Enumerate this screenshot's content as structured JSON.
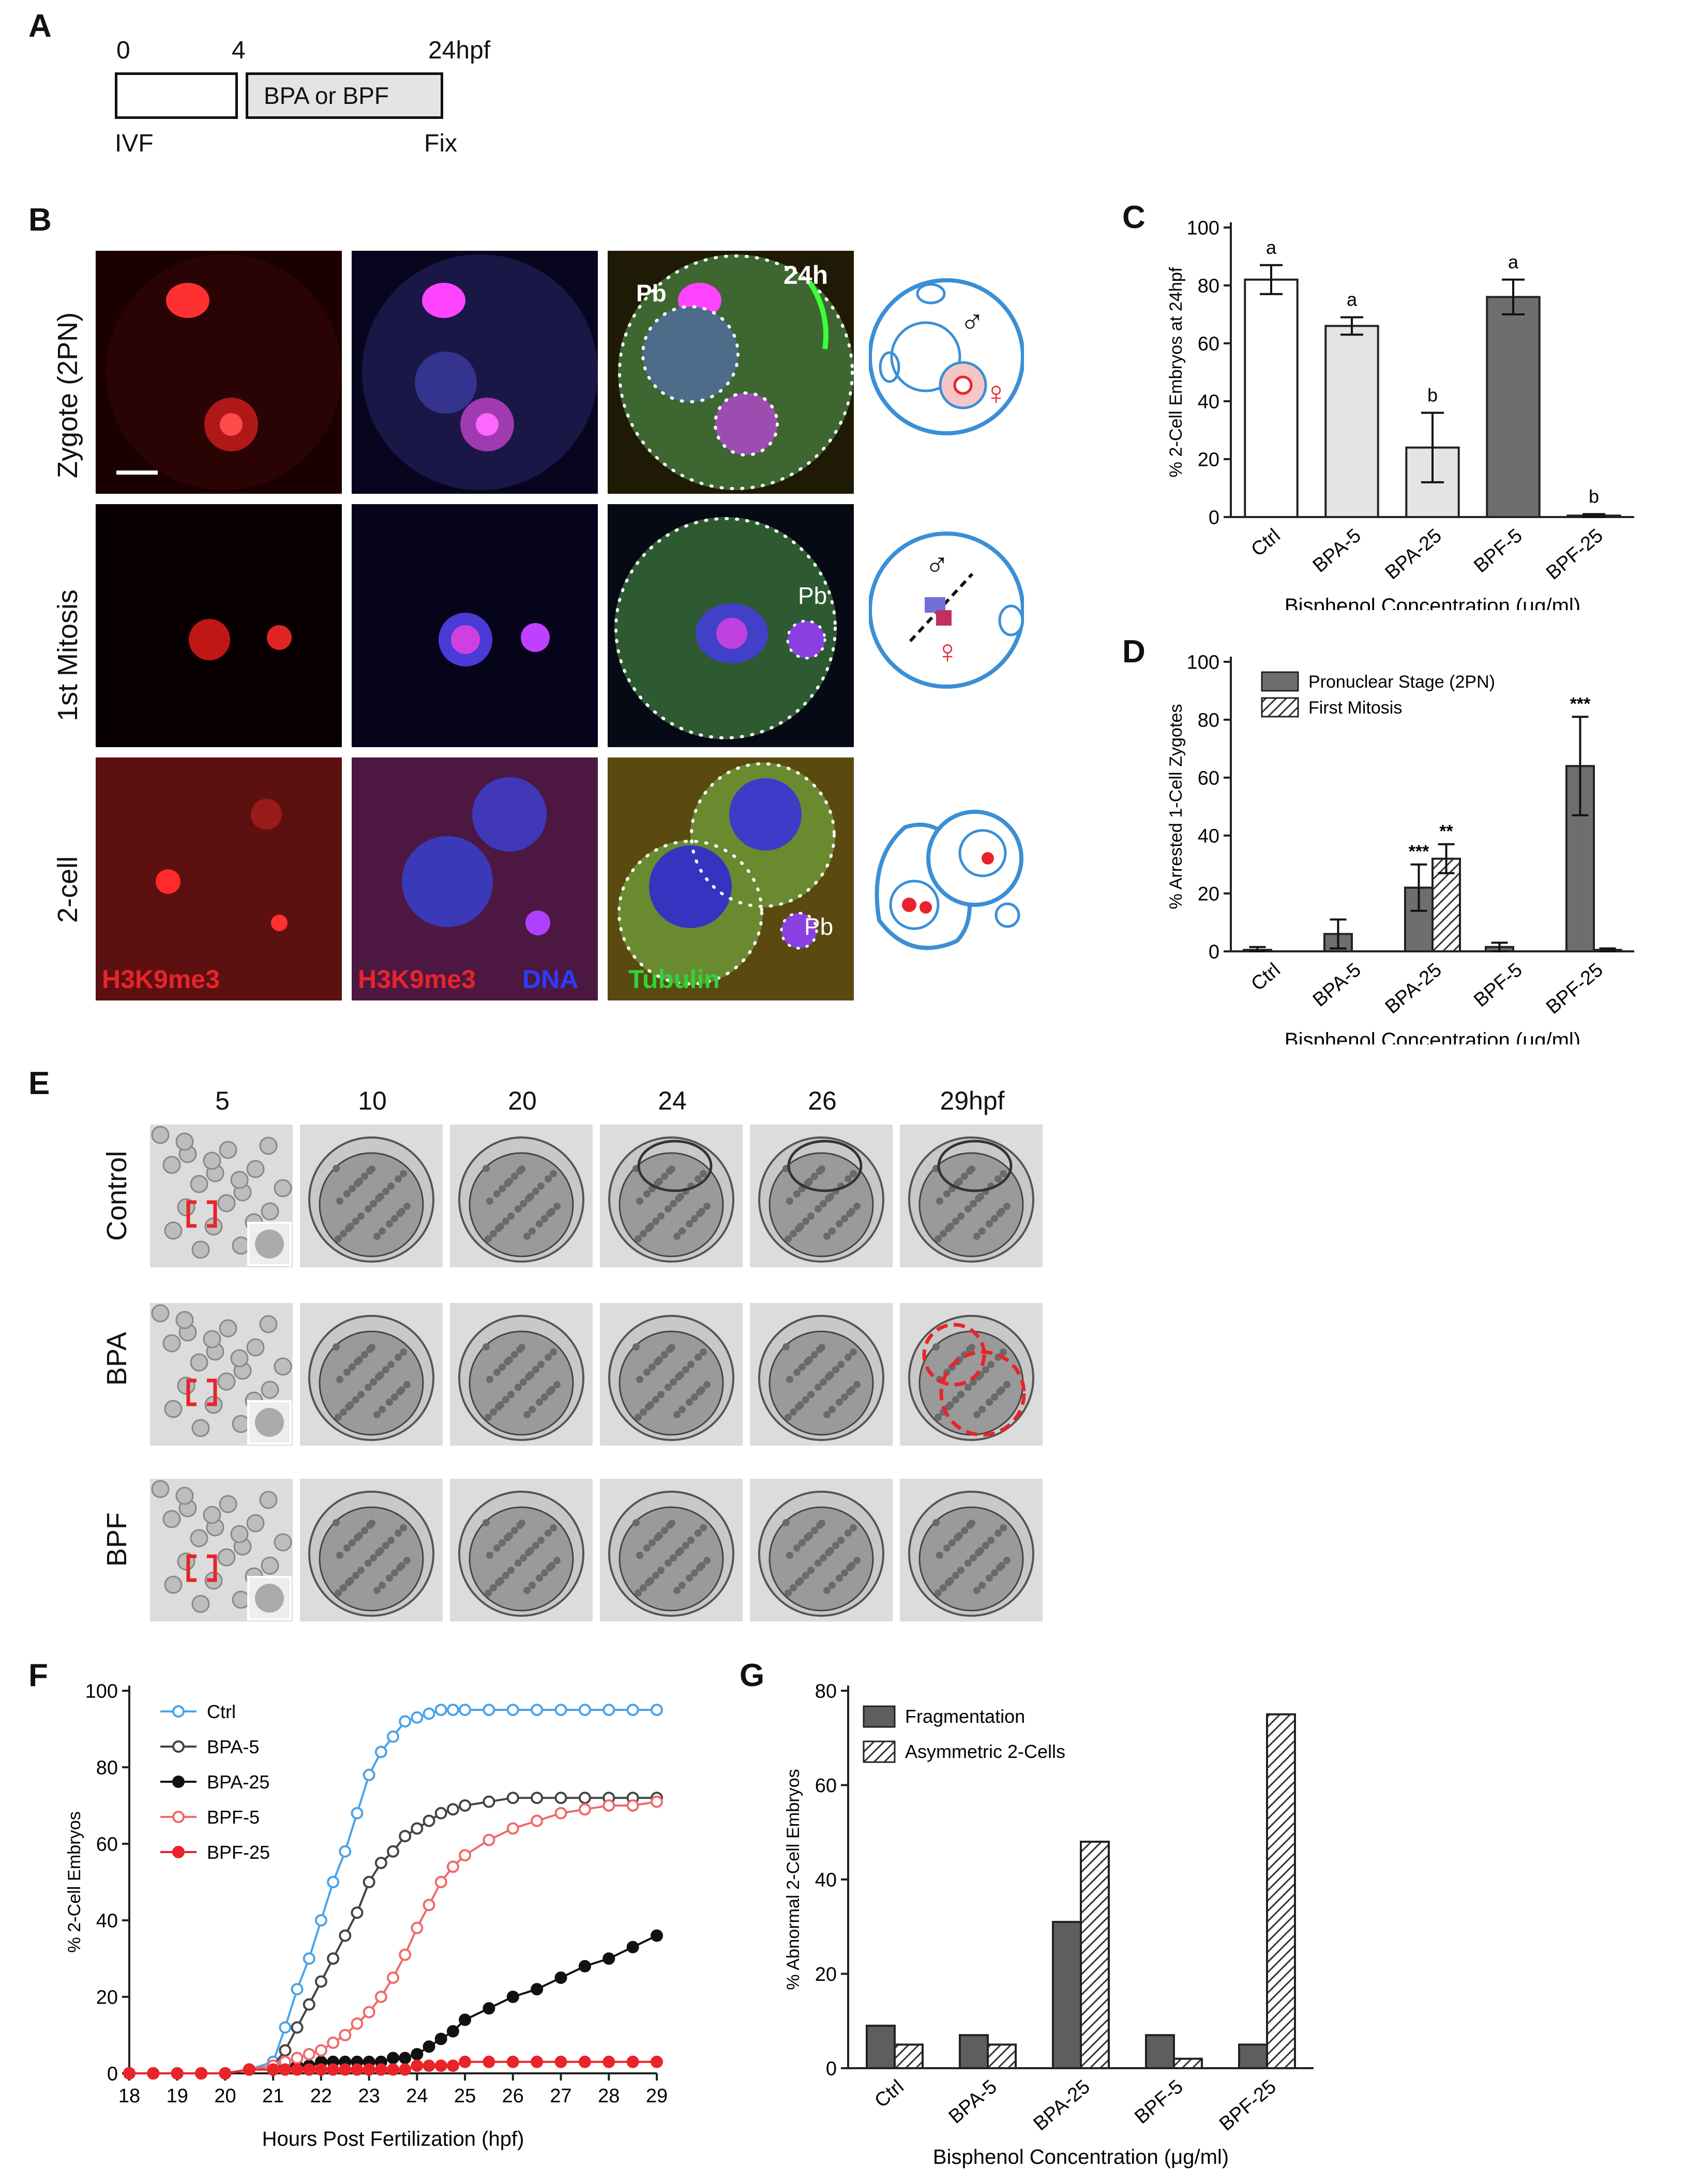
{
  "panels": {
    "A": {
      "label": "A",
      "t0": "0",
      "t4": "4",
      "t24": "24hpf",
      "box": "BPA or BPF",
      "ivf": "IVF",
      "fix": "Fix"
    },
    "B": {
      "label": "B",
      "rows": [
        "Zygote (2PN)",
        "1st Mitosis",
        "2-cell"
      ],
      "labels": {
        "pb": "Pb",
        "h24": "24h",
        "h3k": "H3K9me3",
        "h3k2": "H3K9me3",
        "dna": "DNA",
        "tub": "Tubulin"
      },
      "colors": {
        "red": "#e8242a",
        "blue": "#2c3cff",
        "green": "#2fd43a",
        "diagram": "#3a8fd6"
      }
    },
    "E": {
      "label": "E",
      "timepoints": [
        "5",
        "10",
        "20",
        "24",
        "26",
        "29hpf"
      ],
      "rows": [
        "Control",
        "BPA",
        "BPF"
      ]
    }
  },
  "chart_data": [
    {
      "id": "C",
      "label": "C",
      "type": "bar",
      "categories": [
        "Ctrl",
        "BPA-5",
        "BPA-25",
        "BPF-5",
        "BPF-25"
      ],
      "values": [
        82,
        66,
        24,
        76,
        0.5
      ],
      "errors": [
        5,
        3,
        12,
        6,
        0.5
      ],
      "letters": [
        "a",
        "a",
        "b",
        "a",
        "b"
      ],
      "fills": [
        "#ffffff",
        "#e4e4e4",
        "#e4e4e4",
        "#6e6e6e",
        "#6e6e6e"
      ],
      "ylabel": "% 2-Cell Embryos at 24hpf",
      "xlabel": "Bisphenol Concentration (μg/ml)",
      "ylim": [
        0,
        100
      ],
      "yticks": [
        0,
        20,
        40,
        60,
        80,
        100
      ]
    },
    {
      "id": "D",
      "label": "D",
      "type": "bar",
      "categories": [
        "Ctrl",
        "BPA-5",
        "BPA-25",
        "BPF-5",
        "BPF-25"
      ],
      "series": [
        {
          "name": "Pronuclear Stage (2PN)",
          "values": [
            0.5,
            6,
            22,
            1.5,
            64
          ],
          "errors": [
            1,
            5,
            8,
            1.5,
            17
          ],
          "stars": [
            "",
            "",
            "***",
            "",
            "***"
          ]
        },
        {
          "name": "First Mitosis",
          "values": [
            0,
            0,
            32,
            0,
            0.5
          ],
          "errors": [
            0,
            0,
            5,
            0,
            0.5
          ],
          "stars": [
            "",
            "",
            "**",
            "",
            ""
          ]
        }
      ],
      "ylabel": "% Arrested 1-Cell Zygotes",
      "xlabel": "Bisphenol Concentration (μg/ml)",
      "ylim": [
        0,
        100
      ],
      "yticks": [
        0,
        20,
        40,
        60,
        80,
        100
      ]
    },
    {
      "id": "F",
      "label": "F",
      "type": "line",
      "x": [
        18,
        18.5,
        19,
        19.5,
        20,
        20.5,
        21,
        21.25,
        21.5,
        21.75,
        22,
        22.25,
        22.5,
        22.75,
        23,
        23.25,
        23.5,
        23.75,
        24,
        24.25,
        24.5,
        24.75,
        25,
        25.5,
        26,
        26.5,
        27,
        27.5,
        28,
        28.5,
        29
      ],
      "series": [
        {
          "name": "Ctrl",
          "color": "#4aa3e8",
          "filled": false,
          "values": [
            0,
            0,
            0,
            0,
            0,
            1,
            3,
            12,
            22,
            30,
            40,
            50,
            58,
            68,
            78,
            84,
            88,
            92,
            93,
            94,
            95,
            95,
            95,
            95,
            95,
            95,
            95,
            95,
            95,
            95,
            95
          ]
        },
        {
          "name": "BPA-5",
          "color": "#444444",
          "filled": false,
          "values": [
            0,
            0,
            0,
            0,
            0,
            1,
            2,
            6,
            12,
            18,
            24,
            30,
            36,
            42,
            50,
            55,
            58,
            62,
            64,
            66,
            68,
            69,
            70,
            71,
            72,
            72,
            72,
            72,
            72,
            72,
            72
          ]
        },
        {
          "name": "BPA-25",
          "color": "#111111",
          "filled": true,
          "values": [
            0,
            0,
            0,
            0,
            0,
            1,
            1,
            2,
            2,
            2,
            3,
            3,
            3,
            3,
            3,
            3,
            4,
            4,
            5,
            7,
            9,
            11,
            14,
            17,
            20,
            22,
            25,
            28,
            30,
            33,
            36
          ]
        },
        {
          "name": "BPF-5",
          "color": "#ef6a6a",
          "filled": false,
          "values": [
            0,
            0,
            0,
            0,
            0,
            1,
            2,
            3,
            4,
            5,
            6,
            8,
            10,
            13,
            16,
            20,
            25,
            31,
            38,
            44,
            50,
            54,
            57,
            61,
            64,
            66,
            68,
            69,
            70,
            70,
            71
          ]
        },
        {
          "name": "BPF-25",
          "color": "#e8242a",
          "filled": true,
          "values": [
            0,
            0,
            0,
            0,
            0,
            1,
            1,
            1,
            1,
            1,
            1,
            1,
            1,
            1,
            1,
            1,
            1,
            1,
            2,
            2,
            2,
            2,
            3,
            3,
            3,
            3,
            3,
            3,
            3,
            3,
            3
          ]
        }
      ],
      "ylabel": "% 2-Cell Embryos",
      "xlabel": "Hours Post Fertilization (hpf)",
      "xlim": [
        18,
        29
      ],
      "ylim": [
        0,
        100
      ],
      "xticks": [
        18,
        19,
        20,
        21,
        22,
        23,
        24,
        25,
        26,
        27,
        28,
        29
      ],
      "yticks": [
        0,
        20,
        40,
        60,
        80,
        100
      ]
    },
    {
      "id": "G",
      "label": "G",
      "type": "bar",
      "categories": [
        "Ctrl",
        "BPA-5",
        "BPA-25",
        "BPF-5",
        "BPF-25"
      ],
      "series": [
        {
          "name": "Fragmentation",
          "values": [
            9,
            7,
            31,
            7,
            5
          ]
        },
        {
          "name": "Asymmetric 2-Cells",
          "values": [
            5,
            5,
            48,
            2,
            75
          ]
        }
      ],
      "ylabel": "% Abnormal 2-Cell Embryos",
      "xlabel": "Bisphenol Concentration (μg/ml)",
      "ylim": [
        0,
        80
      ],
      "yticks": [
        0,
        20,
        40,
        60,
        80
      ]
    }
  ]
}
